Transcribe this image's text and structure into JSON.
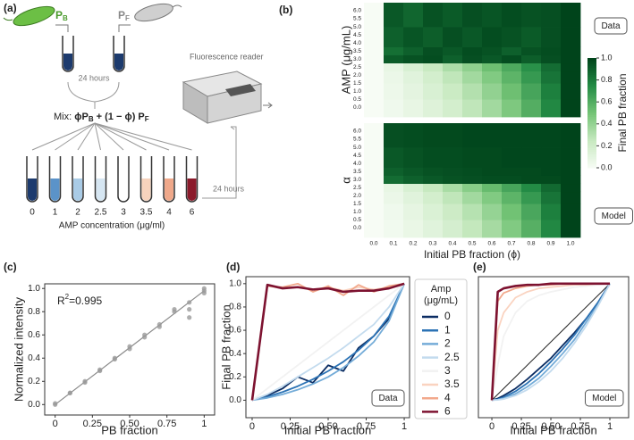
{
  "schematic": {
    "panel_label": "(a)",
    "strain_b": [
      "P",
      "B"
    ],
    "strain_f": [
      "P",
      "F"
    ],
    "incubation": "24 hours",
    "reader": "Fluorescence reader",
    "mix": [
      "Mix: ",
      "ϕP",
      "B",
      " + (1 − ϕ) P",
      "F"
    ],
    "tubes": {
      "concentrations": [
        0,
        1,
        2,
        2.5,
        3,
        3.5,
        4,
        6
      ],
      "colors": [
        "#1d3b6e",
        "#5b93c9",
        "#a9cbe6",
        "#d6e6f2",
        "#ffffff",
        "#f7d3bd",
        "#efa88a",
        "#8b1a2b"
      ]
    },
    "axis_label": "AMP concentration (μg/ml)",
    "incubation_2": "24 hours"
  },
  "chart_data": [
    {
      "type": "heatmap",
      "panel_label": "(b)",
      "ylabel": "AMP (μg/mL)",
      "box_label": "Data",
      "x": [
        0,
        0.1,
        0.2,
        0.3,
        0.4,
        0.5,
        0.6,
        0.7,
        0.8,
        0.9,
        1
      ],
      "y": [
        0,
        1,
        2,
        2.5,
        3,
        3.5,
        4,
        6
      ],
      "values": [
        [
          0,
          0.04,
          0.08,
          0.13,
          0.19,
          0.27,
          0.36,
          0.47,
          0.6,
          0.76,
          1
        ],
        [
          0,
          0.05,
          0.1,
          0.16,
          0.23,
          0.31,
          0.41,
          0.52,
          0.64,
          0.79,
          1
        ],
        [
          0,
          0.06,
          0.12,
          0.19,
          0.27,
          0.36,
          0.46,
          0.57,
          0.69,
          0.83,
          1
        ],
        [
          0,
          0.08,
          0.16,
          0.24,
          0.33,
          0.42,
          0.52,
          0.62,
          0.73,
          0.86,
          1
        ],
        [
          0,
          0.92,
          0.95,
          0.97,
          0.9,
          0.96,
          0.93,
          0.97,
          0.91,
          0.96,
          1
        ],
        [
          0,
          0.85,
          0.9,
          0.96,
          0.93,
          0.97,
          0.95,
          0.9,
          0.95,
          0.97,
          1
        ],
        [
          0,
          0.9,
          0.94,
          0.91,
          0.96,
          0.93,
          0.97,
          0.95,
          0.92,
          0.96,
          1
        ],
        [
          0,
          0.93,
          0.88,
          0.95,
          0.92,
          0.96,
          0.94,
          0.97,
          0.95,
          0.96,
          1
        ]
      ],
      "xlim": [
        -0.05,
        1.05
      ],
      "ylim": [
        -0.6,
        6.5
      ],
      "yticks": [
        {
          "value": 0,
          "label": "0.0"
        },
        0.5,
        {
          "value": 1,
          "label": "1.0"
        },
        1.5,
        {
          "value": 2,
          "label": "2.0"
        },
        2.5,
        {
          "value": 3,
          "label": "3.0"
        },
        3.5,
        {
          "value": 4,
          "label": "4.0"
        },
        4.5,
        {
          "value": 5,
          "label": "5.0"
        },
        5.5,
        {
          "value": 6,
          "label": "6.0"
        }
      ],
      "zlim": [
        0,
        1
      ],
      "colormap": [
        "#f7fcf5",
        "#c7e9c0",
        "#74c476",
        "#238b45",
        "#00441b"
      ],
      "colorbar": {
        "label": "Final PB fraction",
        "ticks": [
          {
            "value": 0,
            "label": "0.0"
          },
          0.2,
          0.4,
          0.6,
          0.8,
          {
            "value": 1,
            "label": "1.0"
          }
        ]
      }
    },
    {
      "type": "heatmap",
      "ylabel": "α",
      "box_label": "Model",
      "xlabel": "Initial PB fraction (ϕ)",
      "x": [
        0,
        0.1,
        0.2,
        0.3,
        0.4,
        0.5,
        0.6,
        0.7,
        0.8,
        0.9,
        1
      ],
      "y": [
        0,
        1,
        2,
        2.5,
        3,
        3.5,
        4,
        6
      ],
      "values": [
        [
          0,
          0.03,
          0.07,
          0.12,
          0.18,
          0.26,
          0.35,
          0.46,
          0.59,
          0.76,
          1
        ],
        [
          0,
          0.04,
          0.09,
          0.15,
          0.22,
          0.3,
          0.4,
          0.51,
          0.63,
          0.79,
          1
        ],
        [
          0,
          0.06,
          0.12,
          0.19,
          0.27,
          0.36,
          0.46,
          0.57,
          0.69,
          0.83,
          1
        ],
        [
          0,
          0.08,
          0.16,
          0.25,
          0.34,
          0.44,
          0.54,
          0.64,
          0.75,
          0.87,
          1
        ],
        [
          0,
          0.86,
          0.9,
          0.93,
          0.95,
          0.96,
          0.97,
          0.97,
          0.98,
          0.98,
          1
        ],
        [
          0,
          0.9,
          0.93,
          0.95,
          0.96,
          0.97,
          0.98,
          0.98,
          0.98,
          0.99,
          1
        ],
        [
          0,
          0.93,
          0.95,
          0.97,
          0.97,
          0.98,
          0.98,
          0.99,
          0.99,
          0.99,
          1
        ],
        [
          0,
          0.96,
          0.97,
          0.98,
          0.98,
          0.99,
          0.99,
          0.99,
          0.99,
          0.99,
          1
        ]
      ],
      "xlim": [
        -0.05,
        1.05
      ],
      "ylim": [
        -0.6,
        6.5
      ],
      "xticks": [
        {
          "value": 0,
          "label": "0.0"
        },
        0.1,
        0.2,
        0.3,
        0.4,
        0.5,
        0.6,
        0.7,
        0.8,
        0.9,
        {
          "value": 1,
          "label": "1.0"
        }
      ],
      "yticks": [
        {
          "value": 0,
          "label": "0.0"
        },
        0.5,
        {
          "value": 1,
          "label": "1.0"
        },
        1.5,
        {
          "value": 2,
          "label": "2.0"
        },
        2.5,
        {
          "value": 3,
          "label": "3.0"
        },
        3.5,
        {
          "value": 4,
          "label": "4.0"
        },
        4.5,
        {
          "value": 5,
          "label": "5.0"
        },
        5.5,
        {
          "value": 6,
          "label": "6.0"
        }
      ],
      "zlim": [
        0,
        1
      ],
      "colormap": [
        "#f7fcf5",
        "#c7e9c0",
        "#74c476",
        "#238b45",
        "#00441b"
      ]
    },
    {
      "type": "scatter",
      "panel_label": "(c)",
      "xlabel": "PB fraction",
      "ylabel": "Normalized intensity",
      "annotation": [
        "R",
        "2",
        "=0.995"
      ],
      "color": "#9a9a9a",
      "x": [
        0,
        0,
        0.1,
        0.1,
        0.2,
        0.2,
        0.3,
        0.3,
        0.4,
        0.4,
        0.5,
        0.5,
        0.6,
        0.6,
        0.7,
        0.7,
        0.8,
        0.8,
        0.9,
        0.9,
        0.9,
        1,
        1,
        1
      ],
      "values": [
        0,
        0.01,
        0.1,
        0.1,
        0.19,
        0.2,
        0.29,
        0.3,
        0.39,
        0.4,
        0.48,
        0.5,
        0.58,
        0.6,
        0.67,
        0.69,
        0.8,
        0.82,
        0.88,
        0.82,
        0.75,
        0.96,
        0.98,
        1
      ],
      "fit": {
        "x": [
          0,
          1
        ],
        "values": [
          0,
          0.98
        ],
        "color": "#8a8a8a"
      },
      "xlim": [
        -0.07,
        1.07
      ],
      "ylim": [
        -0.09,
        1.04
      ],
      "xticks": [
        0,
        0.25,
        {
          "value": 0.5,
          "label": "0.50"
        },
        0.75,
        1
      ],
      "yticks": [
        {
          "value": 0,
          "label": "0.0"
        },
        0.2,
        0.4,
        0.6,
        0.8,
        {
          "value": 1,
          "label": "1.0"
        }
      ]
    },
    {
      "type": "line",
      "panel_label": "(d)",
      "xlabel": "Initial PB fraction",
      "ylabel": "Final PB fraction",
      "box_label": "Data",
      "legend_title": [
        "Amp",
        "(μg/mL)"
      ],
      "x": [
        0,
        0.1,
        0.2,
        0.3,
        0.4,
        0.5,
        0.6,
        0.7,
        0.8,
        0.9,
        1
      ],
      "reference": {
        "x": [
          0,
          1
        ],
        "values": [
          0,
          1
        ],
        "color": "#222222"
      },
      "series": [
        {
          "name": "0",
          "color": "#0b2d63",
          "values": [
            0,
            0.04,
            0.1,
            0.2,
            0.15,
            0.3,
            0.25,
            0.45,
            0.55,
            0.7,
            1
          ]
        },
        {
          "name": "1",
          "color": "#2c73b5",
          "values": [
            0,
            0.03,
            0.07,
            0.12,
            0.18,
            0.25,
            0.33,
            0.43,
            0.55,
            0.72,
            1
          ]
        },
        {
          "name": "2",
          "color": "#74acd8",
          "values": [
            0,
            0.02,
            0.05,
            0.09,
            0.14,
            0.2,
            0.28,
            0.38,
            0.5,
            0.68,
            1
          ]
        },
        {
          "name": "2.5",
          "color": "#c3dbee",
          "values": [
            0,
            0.05,
            0.12,
            0.2,
            0.28,
            0.36,
            0.45,
            0.55,
            0.65,
            0.8,
            1
          ]
        },
        {
          "name": "3",
          "color": "#f2f2f2",
          "values": [
            0,
            0.1,
            0.2,
            0.3,
            0.4,
            0.5,
            0.6,
            0.7,
            0.8,
            0.9,
            1
          ]
        },
        {
          "name": "3.5",
          "color": "#fad3c0",
          "values": [
            0,
            0.98,
            0.96,
            0.97,
            0.95,
            0.97,
            0.94,
            0.97,
            0.95,
            0.97,
            1
          ]
        },
        {
          "name": "4",
          "color": "#f2a98c",
          "values": [
            0,
            0.98,
            0.97,
            1,
            0.93,
            0.98,
            0.9,
            0.99,
            0.93,
            0.98,
            1
          ]
        },
        {
          "name": "6",
          "color": "#7d1230",
          "values": [
            0,
            0.99,
            0.96,
            0.97,
            0.95,
            0.96,
            0.93,
            0.94,
            0.94,
            0.96,
            1
          ]
        }
      ],
      "xlim": [
        -0.041,
        1.035
      ],
      "ylim": [
        -0.15,
        1.06
      ],
      "xticks": [
        0,
        0.25,
        {
          "value": 0.5,
          "label": "0.50"
        },
        0.75,
        1
      ],
      "yticks": [
        {
          "value": 0,
          "label": "0.0"
        },
        0.2,
        0.4,
        0.6,
        0.8,
        {
          "value": 1,
          "label": "1.0"
        }
      ]
    },
    {
      "type": "line",
      "panel_label": "(e)",
      "xlabel": "Initial PB fraction",
      "box_label": "Model",
      "x": [
        0,
        0.05,
        0.1,
        0.2,
        0.3,
        0.4,
        0.5,
        0.6,
        0.7,
        0.8,
        0.9,
        1
      ],
      "reference": {
        "x": [
          0,
          1
        ],
        "values": [
          0,
          1
        ],
        "color": "#222222"
      },
      "series": [
        {
          "color": "#0b2d63",
          "values": [
            0,
            0.015,
            0.04,
            0.1,
            0.18,
            0.27,
            0.36,
            0.47,
            0.58,
            0.7,
            0.84,
            1
          ]
        },
        {
          "color": "#2c73b5",
          "values": [
            0,
            0.008,
            0.025,
            0.076,
            0.146,
            0.23,
            0.33,
            0.44,
            0.56,
            0.7,
            0.84,
            1
          ]
        },
        {
          "color": "#74acd8",
          "values": [
            0,
            0.005,
            0.016,
            0.055,
            0.115,
            0.19,
            0.29,
            0.4,
            0.52,
            0.67,
            0.82,
            1
          ]
        },
        {
          "color": "#c3dbee",
          "values": [
            0,
            0.0025,
            0.01,
            0.04,
            0.09,
            0.16,
            0.25,
            0.36,
            0.49,
            0.64,
            0.81,
            1
          ]
        },
        {
          "color": "#f2f2f2",
          "values": [
            0,
            0.3,
            0.55,
            0.75,
            0.85,
            0.9,
            0.93,
            0.95,
            0.97,
            0.98,
            0.99,
            1
          ]
        },
        {
          "color": "#fad3c0",
          "values": [
            0,
            0.6,
            0.75,
            0.88,
            0.93,
            0.96,
            0.97,
            0.98,
            0.99,
            0.99,
            1,
            1
          ]
        },
        {
          "color": "#f2a98c",
          "values": [
            0,
            0.85,
            0.92,
            0.96,
            0.98,
            0.99,
            0.99,
            1,
            1,
            1,
            1,
            1
          ]
        },
        {
          "color": "#7d1230",
          "values": [
            0,
            0.93,
            0.96,
            0.98,
            0.99,
            0.99,
            1,
            1,
            1,
            1,
            1,
            1
          ]
        }
      ],
      "xlim": [
        -0.114,
        1.159
      ],
      "ylim": [
        -0.15,
        1.06
      ],
      "xticks": [
        0,
        0.25,
        {
          "value": 0.5,
          "label": "0.50"
        },
        0.75,
        1
      ]
    }
  ]
}
